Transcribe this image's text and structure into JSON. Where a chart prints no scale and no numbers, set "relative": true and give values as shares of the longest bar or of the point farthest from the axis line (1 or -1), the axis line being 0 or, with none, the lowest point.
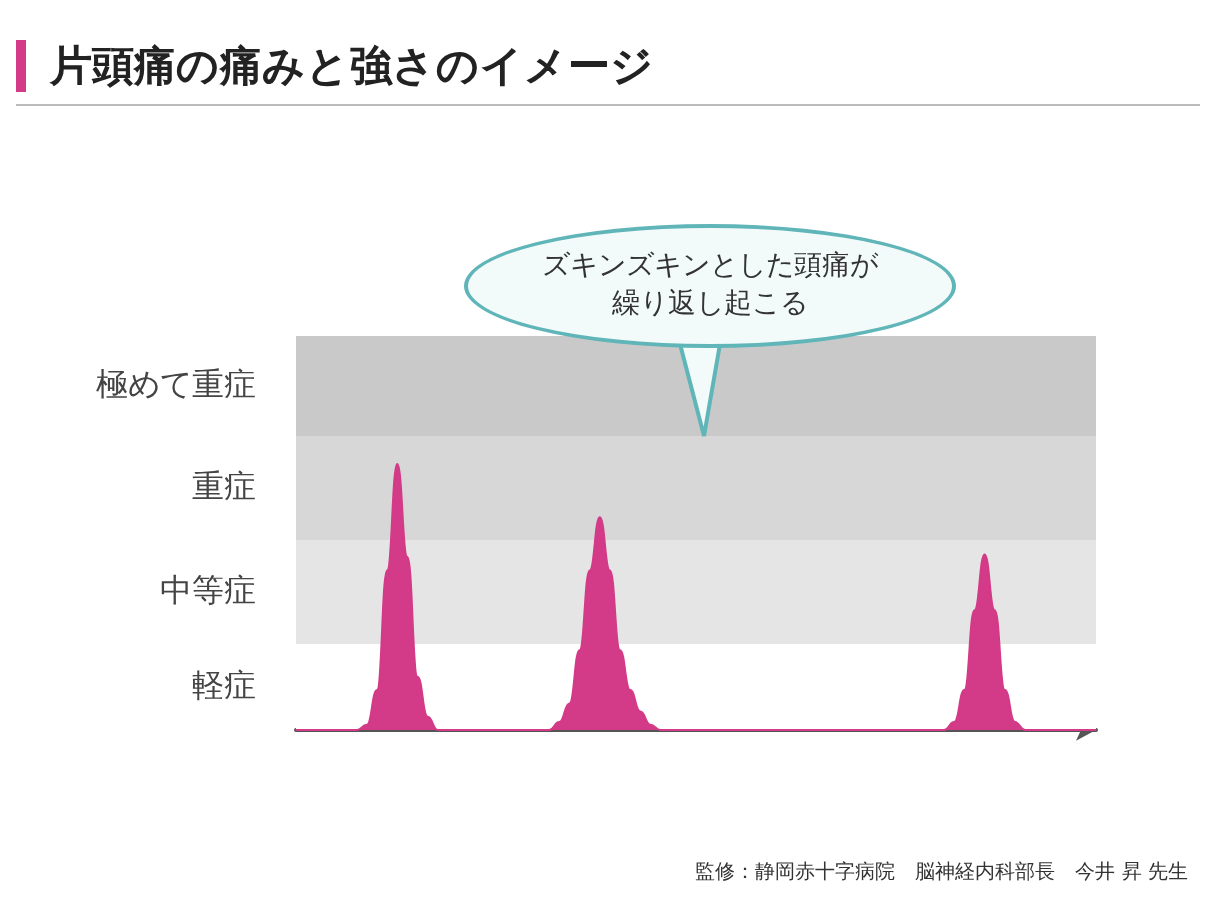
{
  "chart_data": {
    "type": "area",
    "title": "片頭痛の痛みと強さのイメージ",
    "relative": true,
    "grid": false,
    "categories": [
      null,
      null,
      null,
      null,
      null,
      null,
      null,
      null,
      null,
      null,
      null,
      null,
      null,
      null,
      null,
      null,
      null,
      null,
      null,
      null,
      null,
      null,
      null,
      null,
      null,
      null,
      null,
      null,
      null,
      null,
      null,
      null,
      null,
      null,
      null,
      null,
      null,
      null,
      null,
      null,
      null,
      null,
      null,
      null,
      null,
      null,
      null,
      null,
      null,
      null,
      null,
      null,
      null,
      null,
      null,
      null,
      null,
      null,
      null,
      null,
      null,
      null,
      null,
      null,
      null,
      null,
      null,
      null,
      null,
      null,
      null,
      null,
      null,
      null,
      null,
      null,
      null,
      null,
      null,
      null
    ],
    "series": [
      {
        "color": "#d33a87",
        "values": [
          0,
          0,
          0,
          0,
          0,
          0,
          0,
          0.02,
          0.15,
          0.6,
          1,
          0.65,
          0.2,
          0.05,
          0,
          0,
          0,
          0,
          0,
          0,
          0,
          0,
          0,
          0,
          0,
          0,
          0.03,
          0.1,
          0.3,
          0.6,
          0.8,
          0.6,
          0.3,
          0.15,
          0.07,
          0.02,
          0,
          0,
          0,
          0,
          0,
          0,
          0,
          0,
          0,
          0,
          0,
          0,
          0,
          0,
          0,
          0,
          0,
          0,
          0,
          0,
          0,
          0,
          0,
          0,
          0,
          0,
          0,
          0,
          0,
          0.03,
          0.15,
          0.45,
          0.66,
          0.45,
          0.15,
          0.03,
          0,
          0,
          0,
          0,
          0,
          0,
          0,
          0
        ]
      }
    ],
    "bands": [
      {
        "axis": "y",
        "from": 1.105,
        "to": 1.481,
        "label": "極めて重症",
        "color": "#c9c9c9"
      },
      {
        "axis": "y",
        "from": 0.714,
        "to": 1.105,
        "label": "重症",
        "color": "#d7d7d7"
      },
      {
        "axis": "y",
        "from": 0.323,
        "to": 0.714,
        "label": "中等症",
        "color": "#e5e5e5"
      },
      {
        "axis": "y",
        "from": 0,
        "to": 0.323,
        "label": "軽症",
        "color": "#ffffff"
      }
    ],
    "annotations": [
      "ズキンズキンとした頭痛が繰り返し起こる",
      "監修：静岡赤十字病院　脳神経内科部長　今井 昇 先生"
    ]
  }
}
